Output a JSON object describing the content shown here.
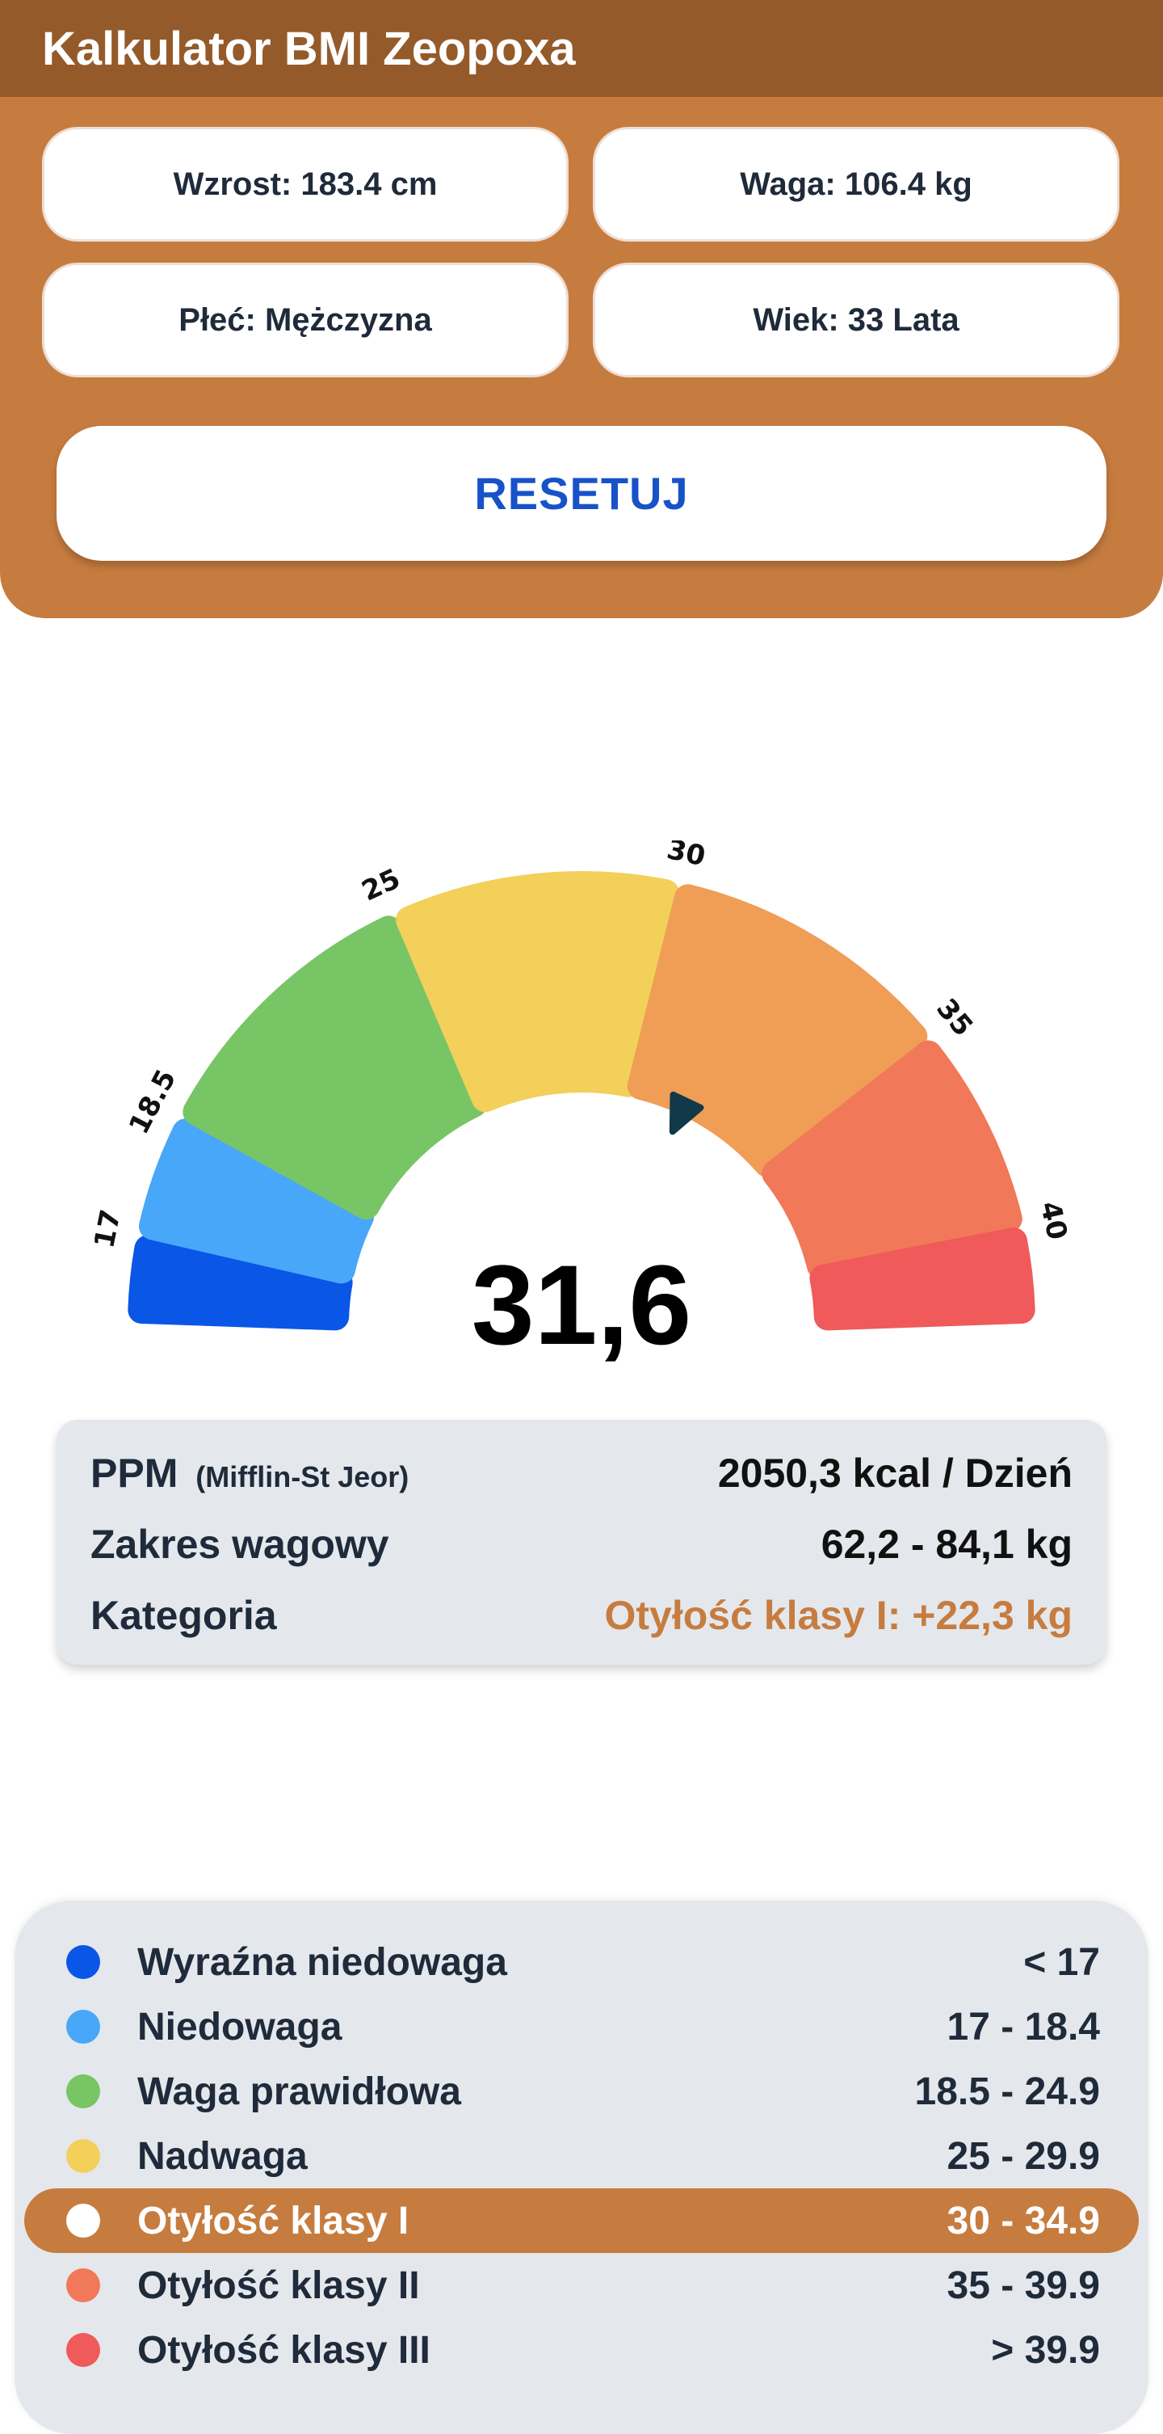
{
  "app": {
    "title": "Kalkulator BMI Zeopoxa"
  },
  "inputs": {
    "height": "Wzrost: 183.4 cm",
    "weight": "Waga: 106.4 kg",
    "sex": "Płeć: Mężczyzna",
    "age": "Wiek: 33 Lata"
  },
  "reset_label": "RESETUJ",
  "gauge": {
    "bmi": "31,6",
    "bmi_value": 31.6,
    "ticks": [
      "17",
      "18.5",
      "25",
      "30",
      "35",
      "40"
    ],
    "segments": [
      {
        "name": "Wyraźna niedowaga",
        "color": "#0a56e6"
      },
      {
        "name": "Niedowaga",
        "color": "#48a7f8"
      },
      {
        "name": "Waga prawidłowa",
        "color": "#78c566"
      },
      {
        "name": "Nadwaga",
        "color": "#f2d05a"
      },
      {
        "name": "Otyłość klasy I",
        "color": "#f09d56"
      },
      {
        "name": "Otyłość klasy II",
        "color": "#f17859"
      },
      {
        "name": "Otyłość klasy III",
        "color": "#f05a5a"
      }
    ],
    "pointer_color": "#11394a"
  },
  "info": {
    "ppm_label": "PPM",
    "ppm_sub": "(Mifflin-St Jeor)",
    "ppm_value": "2050,3 kcal / Dzień",
    "range_label": "Zakres wagowy",
    "range_value": "62,2 - 84,1 kg",
    "category_label": "Kategoria",
    "category_value": "Otyłość klasy I: +22,3 kg",
    "accent_color": "#c77c3f"
  },
  "legend": [
    {
      "name": "Wyraźna niedowaga",
      "range": "< 17",
      "color": "#0a56e6",
      "active": false
    },
    {
      "name": "Niedowaga",
      "range": "17 - 18.4",
      "color": "#48a7f8",
      "active": false
    },
    {
      "name": "Waga prawidłowa",
      "range": "18.5 - 24.9",
      "color": "#78c566",
      "active": false
    },
    {
      "name": "Nadwaga",
      "range": "25 - 29.9",
      "color": "#f2d05a",
      "active": false
    },
    {
      "name": "Otyłość klasy I",
      "range": "30 - 34.9",
      "color": "#ffffff",
      "active": true
    },
    {
      "name": "Otyłość klasy II",
      "range": "35 - 39.9",
      "color": "#f17859",
      "active": false
    },
    {
      "name": "Otyłość klasy III",
      "range": "> 39.9",
      "color": "#f05a5a",
      "active": false
    }
  ]
}
